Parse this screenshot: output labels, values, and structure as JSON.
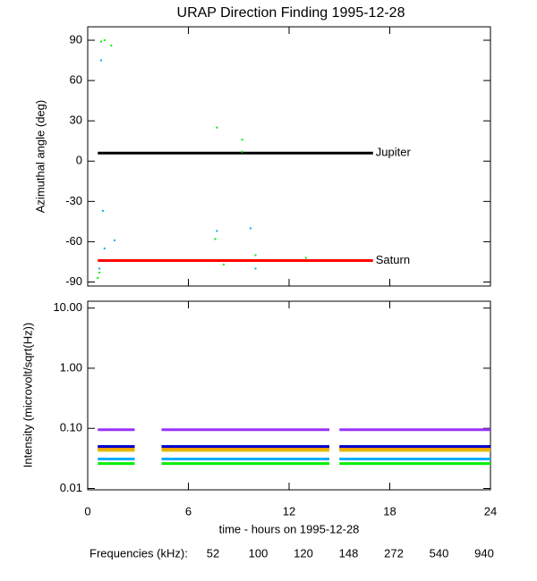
{
  "chart_data": [
    {
      "type": "line",
      "title": "URAP Direction Finding  1995-12-28",
      "y_label": "Azimuthal angle (deg)",
      "xlim": [
        0,
        24
      ],
      "xticks": [
        0,
        6,
        12,
        18,
        24
      ],
      "ylim": [
        -93,
        100
      ],
      "yticks": [
        90,
        60,
        30,
        0,
        -30,
        -60,
        -90
      ],
      "series": [
        {
          "name": "Jupiter",
          "color": "#000000",
          "x": [
            0.6,
            17
          ],
          "values": [
            6,
            6
          ]
        },
        {
          "name": "Saturn",
          "color": "#ff0000",
          "x": [
            0.6,
            17
          ],
          "values": [
            -74,
            -74
          ]
        }
      ],
      "points": {
        "x": [
          0.8,
          1.0,
          1.4,
          0.8,
          7.7,
          9.2,
          9.2,
          0.9,
          1.6,
          7.7,
          7.6,
          9.7,
          10.0,
          13.0,
          8.1,
          10.0,
          1.0,
          0.7,
          0.6,
          0.7
        ],
        "values": [
          89,
          90,
          86,
          75,
          25,
          16,
          7,
          -37,
          -59,
          -52,
          -58,
          -50,
          -70,
          -72,
          -77,
          -80,
          -65,
          -80,
          -87,
          -83
        ],
        "colors": [
          "#00ee00",
          "#00ee00",
          "#00ee00",
          "#00aaff",
          "#00ee00",
          "#00ee00",
          "#00ee00",
          "#00aaff",
          "#00aaff",
          "#00aaff",
          "#00ee00",
          "#00aaff",
          "#00ee00",
          "#00ee00",
          "#00ee00",
          "#00aaff",
          "#00aaff",
          "#00aaff",
          "#00ee00",
          "#00ee00"
        ]
      }
    },
    {
      "type": "line",
      "y_label": "Intensity (microvolt/sqrt(Hz))",
      "x_label": "time - hours on 1995-12-28",
      "legend_title": "Frequencies (kHz):",
      "log_y": true,
      "xlim": [
        0,
        24
      ],
      "xticks": [
        0,
        6,
        12,
        18,
        24
      ],
      "ylim": [
        0.0095,
        13
      ],
      "yticks": [
        {
          "value": 10,
          "label": "10.00"
        },
        {
          "value": 1,
          "label": "1.00"
        },
        {
          "value": 0.1,
          "label": "0.10"
        },
        {
          "value": 0.01,
          "label": "0.01"
        }
      ],
      "x": [
        0.6,
        2.8,
        3.6,
        4.4,
        14.4,
        14.7,
        15.0,
        24
      ],
      "series": [
        {
          "name": "52",
          "color": "#ff0000",
          "values": [
            0.047,
            0.047,
            null,
            0.047,
            0.047,
            null,
            0.047,
            0.047
          ]
        },
        {
          "name": "100",
          "color": "#ff9900",
          "values": [
            0.045,
            0.045,
            null,
            0.045,
            0.045,
            null,
            0.045,
            0.045
          ]
        },
        {
          "name": "120",
          "color": "#e6b800",
          "values": [
            0.043,
            0.043,
            null,
            0.043,
            0.043,
            null,
            0.043,
            0.043
          ]
        },
        {
          "name": "148",
          "color": "#00ee00",
          "values": [
            0.026,
            0.026,
            null,
            0.026,
            0.026,
            null,
            0.026,
            0.026
          ]
        },
        {
          "name": "272",
          "color": "#00aaff",
          "values": [
            0.031,
            0.031,
            null,
            0.031,
            0.031,
            null,
            0.031,
            0.031
          ]
        },
        {
          "name": "540",
          "color": "#0000cc",
          "values": [
            0.05,
            0.05,
            null,
            0.05,
            0.05,
            null,
            0.05,
            0.05
          ]
        },
        {
          "name": "940",
          "color": "#9933ff",
          "values": [
            0.095,
            0.095,
            null,
            0.095,
            0.095,
            null,
            0.095,
            0.095
          ]
        }
      ]
    }
  ]
}
